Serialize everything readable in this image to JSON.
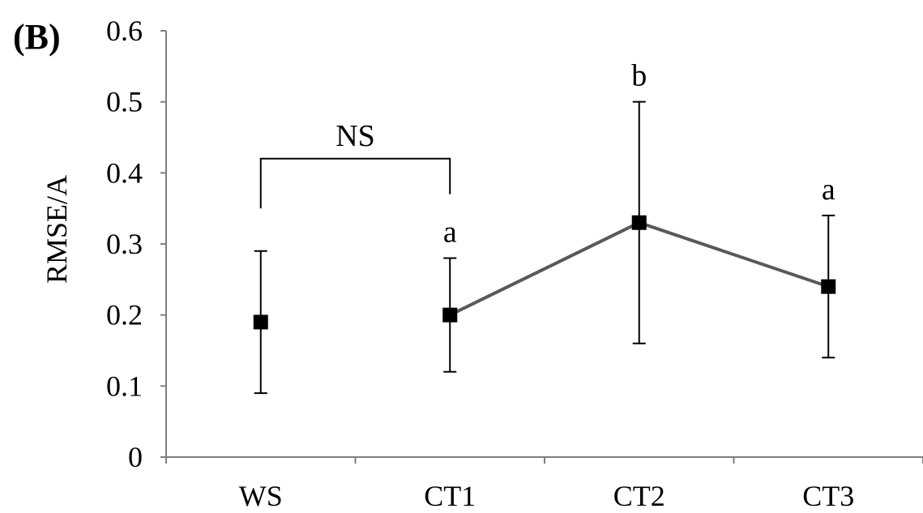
{
  "panel_label": "(B)",
  "chart_data": {
    "type": "line",
    "title": "",
    "xlabel": "",
    "ylabel": "RMSE/A",
    "ylim": [
      0,
      0.6
    ],
    "yticks": [
      "0",
      "0.1",
      "0.2",
      "0.3",
      "0.4",
      "0.5",
      "0.6"
    ],
    "categories": [
      "WS",
      "CT1",
      "CT2",
      "CT3"
    ],
    "grid": false,
    "legend": "none",
    "series": [
      {
        "values": [
          0.19,
          0.2,
          0.33,
          0.24
        ],
        "error_low": [
          0.09,
          0.12,
          0.16,
          0.14
        ],
        "error_high": [
          0.29,
          0.28,
          0.5,
          0.34
        ],
        "connected": [
          false,
          true,
          true,
          true
        ]
      }
    ],
    "significance_letters": [
      "",
      "a",
      "b",
      "a"
    ],
    "bracket": {
      "from": "WS",
      "to": "CT1",
      "label": "NS"
    },
    "colors": {
      "marker": "#000000",
      "line": "#595959",
      "axis": "#7f7f7f"
    }
  }
}
